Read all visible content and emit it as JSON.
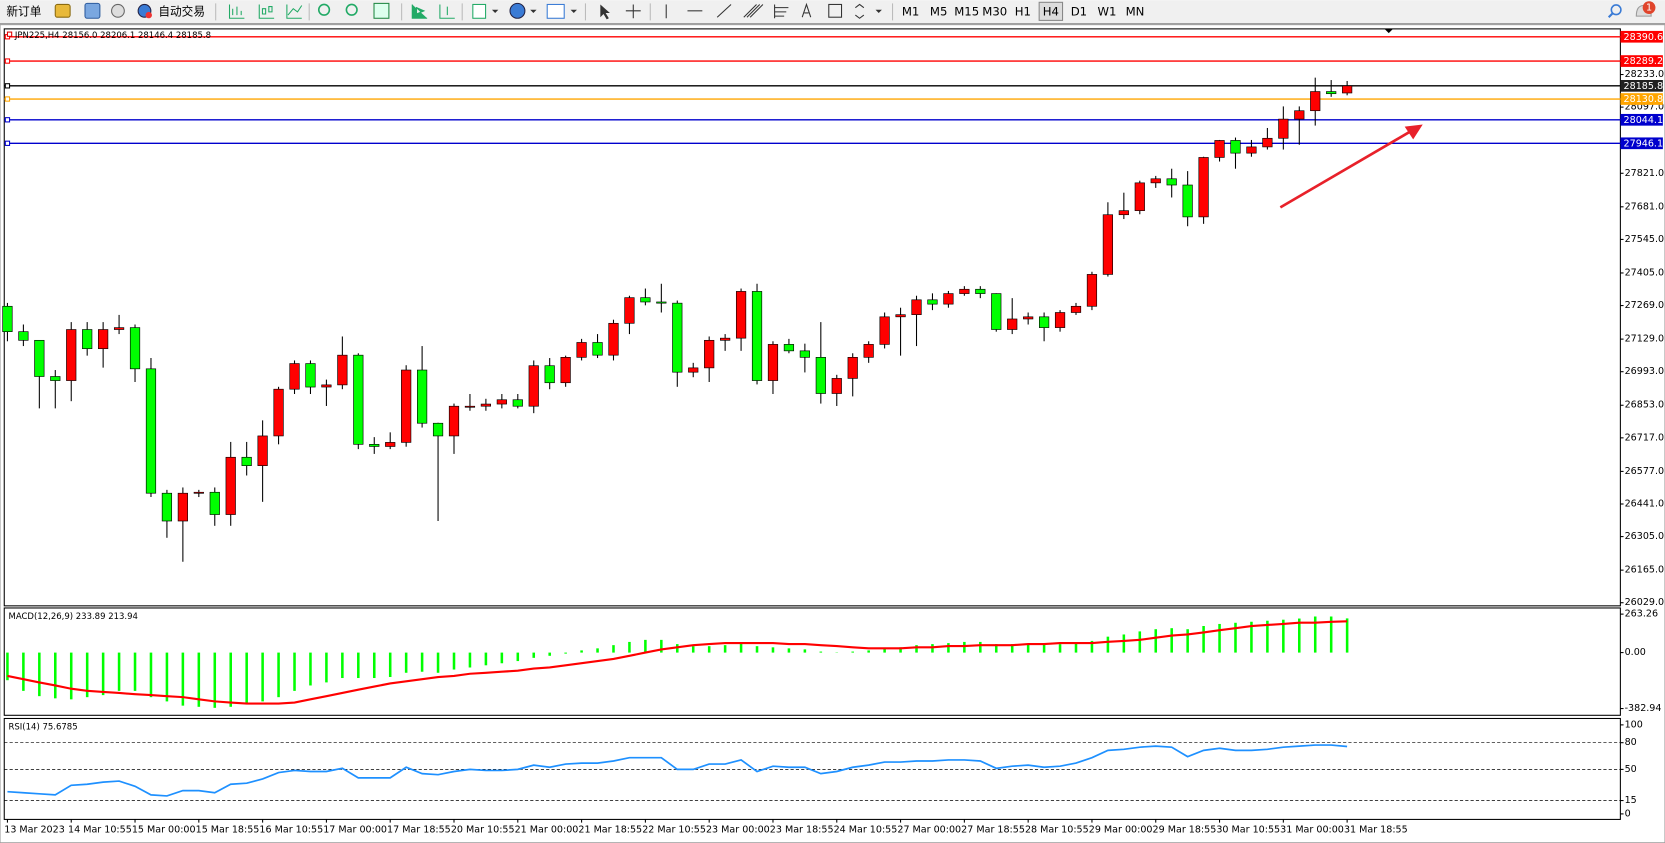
{
  "toolbar": {
    "new_order": "新订单",
    "auto_trading": "自动交易",
    "timeframes": [
      "M1",
      "M5",
      "M15",
      "M30",
      "H1",
      "H4",
      "D1",
      "W1",
      "MN"
    ],
    "selected_timeframe": "H4",
    "notification_count": "1"
  },
  "chart_data": [
    {
      "type": "candlestick",
      "title": "JPN225,H4  28156.0 28206.1 28146.4 28185.8",
      "categories": [
        "13 Mar 2023",
        null,
        null,
        null,
        "14 Mar 10:55",
        null,
        null,
        null,
        "15 Mar 00:00",
        null,
        null,
        null,
        "15 Mar 18:55",
        null,
        null,
        null,
        "16 Mar 10:55",
        null,
        null,
        null,
        "17 Mar 00:00",
        null,
        null,
        null,
        "17 Mar 18:55",
        null,
        null,
        null,
        "20 Mar 10:55",
        null,
        null,
        null,
        "21 Mar 00:00",
        null,
        null,
        null,
        "21 Mar 18:55",
        null,
        null,
        null,
        "22 Mar 10:55",
        null,
        null,
        null,
        "23 Mar 00:00",
        null,
        null,
        null,
        "23 Mar 18:55",
        null,
        null,
        null,
        "24 Mar 10:55",
        null,
        null,
        null,
        "27 Mar 00:00",
        null,
        null,
        null,
        "27 Mar 18:55",
        null,
        null,
        null,
        "28 Mar 10:55",
        null,
        null,
        null,
        "29 Mar 00:00",
        null,
        null,
        null,
        "29 Mar 18:55",
        null,
        null,
        null,
        "30 Mar 10:55",
        null,
        null,
        null,
        "31 Mar 00:00",
        null,
        null,
        null,
        "31 Mar 18:55"
      ],
      "open": [
        27266,
        27160,
        27124,
        26973,
        26956,
        27169,
        27089,
        27169,
        27177,
        27005,
        26486,
        26370,
        26486,
        26490,
        26397,
        26636,
        26601,
        26725,
        26920,
        27027,
        26929,
        26938,
        27062,
        26690,
        26681,
        26698,
        27000,
        26778,
        26725,
        26849,
        26849,
        26858,
        26876,
        26849,
        27018,
        26947,
        27053,
        27115,
        27062,
        27195,
        27302,
        27284,
        27279,
        26991,
        27009,
        27124,
        27133,
        27328,
        26956,
        27107,
        27080,
        27053,
        26902,
        26965,
        27053,
        27107,
        27222,
        27231,
        27293,
        27275,
        27319,
        27337,
        27319,
        27169,
        27213,
        27222,
        27177,
        27240,
        27266,
        27399,
        27648,
        27665,
        27781,
        27798,
        27772,
        27639,
        27887,
        27958,
        27905,
        27931,
        27967,
        28047,
        28082,
        28162,
        28156
      ],
      "high": [
        27280,
        27190,
        27124,
        27000,
        27200,
        27200,
        27200,
        27230,
        27190,
        27050,
        26500,
        26510,
        26500,
        26510,
        26700,
        26700,
        26790,
        26930,
        27040,
        27040,
        26960,
        27140,
        27070,
        26720,
        26740,
        27020,
        27100,
        26780,
        26860,
        26900,
        26880,
        26900,
        26900,
        27040,
        27050,
        27060,
        27130,
        27150,
        27210,
        27310,
        27340,
        27360,
        27290,
        27030,
        27140,
        27150,
        27340,
        27360,
        27120,
        27130,
        27110,
        27200,
        26980,
        27070,
        27120,
        27240,
        27260,
        27310,
        27320,
        27330,
        27350,
        27350,
        27320,
        27300,
        27240,
        27240,
        27250,
        27280,
        27410,
        27700,
        27740,
        27790,
        27810,
        27840,
        27830,
        27890,
        27960,
        27970,
        27960,
        28010,
        28100,
        28100,
        28220,
        28210,
        28206.1
      ],
      "low": [
        27120,
        27100,
        26840,
        26840,
        26870,
        27060,
        27010,
        27150,
        26950,
        26470,
        26300,
        26200,
        26470,
        26350,
        26350,
        26560,
        26450,
        26690,
        26900,
        26900,
        26850,
        26920,
        26670,
        26650,
        26670,
        26680,
        26760,
        26370,
        26650,
        26830,
        26830,
        26840,
        26840,
        26820,
        26920,
        26930,
        27040,
        27050,
        27040,
        27150,
        27270,
        27240,
        26930,
        26970,
        26950,
        27080,
        27080,
        26940,
        26900,
        27070,
        26990,
        26860,
        26850,
        26890,
        27030,
        27090,
        27060,
        27100,
        27250,
        27260,
        27310,
        27300,
        27160,
        27150,
        27190,
        27120,
        27160,
        27230,
        27250,
        27390,
        27630,
        27650,
        27760,
        27720,
        27600,
        27610,
        27870,
        27840,
        27890,
        27920,
        27920,
        27940,
        28020,
        28140,
        28146.4
      ],
      "close": [
        27160,
        27124,
        26973,
        26956,
        27169,
        27089,
        27169,
        27177,
        27005,
        26486,
        26370,
        26486,
        26490,
        26397,
        26636,
        26601,
        26725,
        26920,
        27027,
        26929,
        26938,
        27062,
        26690,
        26681,
        26698,
        27000,
        26778,
        26725,
        26849,
        26849,
        26858,
        26876,
        26849,
        27018,
        26947,
        27053,
        27115,
        27062,
        27195,
        27302,
        27284,
        27279,
        26991,
        27009,
        27124,
        27133,
        27328,
        26956,
        27107,
        27080,
        27053,
        26902,
        26965,
        27053,
        27107,
        27222,
        27231,
        27293,
        27275,
        27319,
        27337,
        27319,
        27169,
        27213,
        27222,
        27177,
        27240,
        27266,
        27399,
        27648,
        27665,
        27781,
        27798,
        27772,
        27639,
        27887,
        27958,
        27905,
        27931,
        27967,
        28047,
        28082,
        28162,
        28153,
        28185.8
      ],
      "up_color": "#ff0000",
      "down_color": "#00ff00",
      "levels": [
        {
          "value": 28390.6,
          "color": "#ff0000"
        },
        {
          "value": 28289.2,
          "color": "#ff0000"
        },
        {
          "value": 28185.8,
          "color": "#000000"
        },
        {
          "value": 28130.8,
          "color": "#ffa500"
        },
        {
          "value": 28044.1,
          "color": "#0000cd"
        },
        {
          "value": 27946.1,
          "color": "#0000cd"
        }
      ],
      "ylim": [
        26016,
        28419
      ],
      "yticks": [
        {
          "value": 28233,
          "label": "28233.0"
        },
        {
          "value": 28097,
          "label": "28097.0"
        },
        {
          "value": 27821,
          "label": "27821.0"
        },
        {
          "value": 27681,
          "label": "27681.0"
        },
        {
          "value": 27545,
          "label": "27545.0"
        },
        {
          "value": 27405,
          "label": "27405.0"
        },
        {
          "value": 27269,
          "label": "27269.0"
        },
        {
          "value": 27129,
          "label": "27129.0"
        },
        {
          "value": 26993,
          "label": "26993.0"
        },
        {
          "value": 26853,
          "label": "26853.0"
        },
        {
          "value": 26717,
          "label": "26717.0"
        },
        {
          "value": 26577,
          "label": "26577.0"
        },
        {
          "value": 26441,
          "label": "26441.0"
        },
        {
          "value": 26305,
          "label": "26305.0"
        },
        {
          "value": 26165,
          "label": "26165.0"
        },
        {
          "value": 26029,
          "label": "26029.0"
        }
      ]
    },
    {
      "type": "macd",
      "title": "MACD(12,26,9) 233.89 213.94",
      "histogram": [
        -189,
        -262,
        -298,
        -313,
        -320,
        -305,
        -291,
        -262,
        -262,
        -305,
        -334,
        -363,
        -371,
        -378,
        -371,
        -349,
        -334,
        -305,
        -262,
        -225,
        -204,
        -174,
        -174,
        -174,
        -167,
        -138,
        -131,
        -138,
        -116,
        -102,
        -87,
        -73,
        -58,
        -36,
        -22,
        -7,
        15,
        29,
        51,
        73,
        87,
        87,
        58,
        44,
        44,
        51,
        65,
        44,
        36,
        29,
        22,
        7,
        2,
        7,
        15,
        29,
        36,
        51,
        58,
        65,
        73,
        73,
        58,
        58,
        58,
        58,
        58,
        65,
        80,
        109,
        124,
        145,
        160,
        167,
        160,
        182,
        196,
        204,
        211,
        218,
        225,
        233,
        247,
        247,
        233.89
      ],
      "histogram_color": "#00ff00",
      "signal": [
        -160,
        -182,
        -204,
        -225,
        -247,
        -262,
        -269,
        -276,
        -284,
        -291,
        -298,
        -305,
        -320,
        -334,
        -342,
        -349,
        -349,
        -349,
        -342,
        -320,
        -298,
        -276,
        -254,
        -233,
        -211,
        -196,
        -182,
        -167,
        -160,
        -145,
        -138,
        -131,
        -124,
        -109,
        -102,
        -87,
        -73,
        -58,
        -44,
        -22,
        0,
        22,
        36,
        51,
        58,
        65,
        65,
        65,
        65,
        58,
        58,
        51,
        44,
        36,
        29,
        29,
        29,
        36,
        36,
        44,
        44,
        51,
        51,
        51,
        58,
        58,
        65,
        65,
        65,
        73,
        80,
        87,
        102,
        116,
        124,
        138,
        153,
        167,
        182,
        189,
        196,
        204,
        204,
        211,
        213.94
      ],
      "signal_color": "#ff0000",
      "ylim": [
        -429,
        298
      ],
      "yticks": [
        {
          "value": 263.26,
          "label": "263.26"
        },
        {
          "value": 0,
          "label": "0.00"
        },
        {
          "value": -382.94,
          "label": "-382.94"
        }
      ]
    },
    {
      "type": "line",
      "title": "RSI(14) 75.6785",
      "values": [
        25.0,
        23.8,
        22.6,
        21.4,
        32.1,
        33.3,
        35.7,
        36.9,
        31.0,
        21.4,
        20.2,
        26.2,
        26.2,
        23.8,
        33.3,
        34.5,
        39.3,
        46.4,
        48.8,
        47.6,
        47.6,
        51.2,
        40.5,
        40.5,
        40.5,
        52.4,
        45.2,
        44.0,
        47.6,
        50.0,
        48.8,
        48.8,
        50.0,
        54.8,
        52.4,
        56.0,
        57.1,
        57.1,
        59.5,
        63.1,
        63.1,
        63.1,
        50.0,
        50.0,
        56.0,
        56.0,
        60.7,
        47.6,
        53.6,
        52.4,
        52.4,
        45.2,
        47.6,
        52.4,
        54.8,
        58.3,
        58.3,
        59.5,
        59.5,
        60.7,
        60.7,
        59.5,
        51.2,
        53.6,
        54.8,
        52.4,
        53.6,
        57.1,
        63.1,
        71.4,
        72.6,
        75.0,
        76.2,
        75.0,
        64.3,
        71.4,
        73.8,
        71.4,
        71.4,
        72.6,
        75.0,
        76.2,
        77.4,
        77.4,
        75.6785
      ],
      "color": "#1e90ff",
      "levels": [
        80,
        50,
        15
      ],
      "ylim": [
        -5,
        106
      ],
      "yticks": [
        100,
        80,
        50,
        15,
        0
      ]
    }
  ]
}
